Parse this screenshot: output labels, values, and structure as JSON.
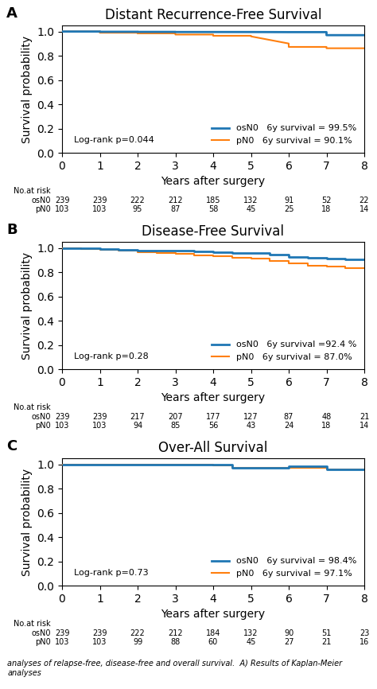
{
  "chart_data": [
    {
      "type": "line",
      "panel_label": "A",
      "title": "Distant Recurrence-Free Survival",
      "xlabel": "Years after surgery",
      "ylabel": "Survival probability",
      "xlim": [
        0,
        8
      ],
      "ylim": [
        0.0,
        1.05
      ],
      "xticks": [
        0,
        1,
        2,
        3,
        4,
        5,
        6,
        7,
        8
      ],
      "yticks": [
        {
          "value": 0.0,
          "label": "0.0"
        },
        {
          "value": 0.2,
          "label": "0.2"
        },
        {
          "value": 0.4,
          "label": "0.4"
        },
        {
          "value": 0.6,
          "label": "0.6"
        },
        {
          "value": 0.8,
          "label": "0.8"
        },
        {
          "value": 1.0,
          "label": "1.0"
        }
      ],
      "legend": "lower right",
      "annotations": [
        "Log-rank p=0.044"
      ],
      "series": [
        {
          "name": "osN0   6y survival = 99.5%",
          "x": [
            0,
            1,
            1,
            2,
            2,
            3,
            3,
            4,
            4,
            5,
            5,
            6,
            6,
            7,
            7,
            8
          ],
          "values": [
            1.0,
            1.0,
            0.998,
            0.998,
            0.997,
            0.997,
            0.996,
            0.996,
            0.996,
            0.996,
            0.996,
            0.995,
            0.995,
            0.995,
            0.97,
            0.97
          ]
        },
        {
          "name": "pN0   6y survival = 90.1%",
          "x": [
            0,
            1,
            1,
            2,
            2,
            3,
            3,
            4,
            4,
            5,
            5,
            6,
            6,
            7,
            7,
            8
          ],
          "values": [
            1.0,
            1.0,
            0.99,
            0.99,
            0.985,
            0.985,
            0.975,
            0.975,
            0.965,
            0.965,
            0.96,
            0.901,
            0.873,
            0.873,
            0.862,
            0.862
          ]
        }
      ],
      "at_risk": {
        "title": "No.at risk",
        "x": [
          0,
          1,
          2,
          3,
          4,
          5,
          6,
          7,
          8
        ],
        "rows": [
          {
            "name": "osN0",
            "values": [
              239,
              239,
              222,
              212,
              185,
              132,
              91,
              52,
              22
            ]
          },
          {
            "name": "pN0",
            "values": [
              103,
              103,
              95,
              87,
              58,
              45,
              25,
              18,
              14
            ]
          }
        ]
      }
    },
    {
      "type": "line",
      "panel_label": "B",
      "title": "Disease-Free Survival",
      "xlabel": "Years after surgery",
      "ylabel": "Survival probability",
      "xlim": [
        0,
        8
      ],
      "ylim": [
        0.0,
        1.05
      ],
      "xticks": [
        0,
        1,
        2,
        3,
        4,
        5,
        6,
        7,
        8
      ],
      "yticks": [
        {
          "value": 0.0,
          "label": "0.0"
        },
        {
          "value": 0.2,
          "label": "0.2"
        },
        {
          "value": 0.4,
          "label": "0.4"
        },
        {
          "value": 0.6,
          "label": "0.6"
        },
        {
          "value": 0.8,
          "label": "0.8"
        },
        {
          "value": 1.0,
          "label": "1.0"
        }
      ],
      "legend": "lower right",
      "annotations": [
        "Log-rank p=0.28"
      ],
      "series": [
        {
          "name": "osN0   6y survival =92.4 %",
          "x": [
            0,
            0.5,
            0.5,
            1,
            1,
            1.5,
            1.5,
            2,
            2,
            2.5,
            2.5,
            3,
            3,
            3.5,
            3.5,
            4,
            4,
            4.5,
            4.5,
            5,
            5,
            5.5,
            5.5,
            6,
            6,
            6.5,
            6.5,
            7,
            7,
            7.5,
            7.5,
            8
          ],
          "values": [
            1.0,
            1.0,
            0.995,
            0.995,
            0.99,
            0.99,
            0.985,
            0.985,
            0.98,
            0.98,
            0.978,
            0.978,
            0.975,
            0.975,
            0.97,
            0.97,
            0.965,
            0.965,
            0.96,
            0.96,
            0.955,
            0.955,
            0.945,
            0.945,
            0.924,
            0.924,
            0.92,
            0.92,
            0.912,
            0.912,
            0.905,
            0.905
          ]
        },
        {
          "name": "pN0   6y survival = 87.0%",
          "x": [
            0,
            0.5,
            0.5,
            1,
            1,
            1.5,
            1.5,
            2,
            2,
            2.5,
            2.5,
            3,
            3,
            3.5,
            3.5,
            4,
            4,
            4.5,
            4.5,
            5,
            5,
            5.5,
            5.5,
            6,
            6,
            6.5,
            6.5,
            7,
            7,
            7.5,
            7.5,
            8
          ],
          "values": [
            1.0,
            1.0,
            0.992,
            0.992,
            0.985,
            0.985,
            0.975,
            0.975,
            0.965,
            0.965,
            0.958,
            0.958,
            0.952,
            0.952,
            0.94,
            0.94,
            0.93,
            0.93,
            0.92,
            0.92,
            0.91,
            0.91,
            0.895,
            0.895,
            0.87,
            0.87,
            0.852,
            0.852,
            0.845,
            0.845,
            0.835,
            0.835
          ]
        }
      ],
      "at_risk": {
        "title": "No.at risk",
        "x": [
          0,
          1,
          2,
          3,
          4,
          5,
          6,
          7,
          8
        ],
        "rows": [
          {
            "name": "osN0",
            "values": [
              239,
              239,
              217,
              207,
              177,
              127,
              87,
              48,
              21
            ]
          },
          {
            "name": "pN0",
            "values": [
              103,
              103,
              94,
              85,
              56,
              43,
              24,
              18,
              14
            ]
          }
        ]
      }
    },
    {
      "type": "line",
      "panel_label": "C",
      "title": "Over-All Survival",
      "xlabel": "Years after surgery",
      "ylabel": "Survival probability",
      "xlim": [
        0,
        8
      ],
      "ylim": [
        0.0,
        1.05
      ],
      "xticks": [
        0,
        1,
        2,
        3,
        4,
        5,
        6,
        7,
        8
      ],
      "yticks": [
        {
          "value": 0.0,
          "label": "0.0"
        },
        {
          "value": 0.2,
          "label": "0.2"
        },
        {
          "value": 0.4,
          "label": "0.4"
        },
        {
          "value": 0.6,
          "label": "0.6"
        },
        {
          "value": 0.8,
          "label": "0.8"
        },
        {
          "value": 1.0,
          "label": "1.0"
        }
      ],
      "legend": "lower right",
      "annotations": [
        "Log-rank p=0.73"
      ],
      "series": [
        {
          "name": "osN0   6y survival = 98.4%",
          "x": [
            0,
            1,
            1,
            2,
            2,
            3,
            3,
            4,
            4,
            4.5,
            4.5,
            5,
            5,
            6,
            6,
            7,
            7,
            8
          ],
          "values": [
            1.0,
            1.0,
            0.999,
            0.999,
            0.998,
            0.998,
            0.997,
            0.997,
            0.996,
            0.996,
            0.97,
            0.97,
            0.968,
            0.968,
            0.984,
            0.984,
            0.96,
            0.96
          ]
        },
        {
          "name": "pN0   6y survival = 97.1%",
          "x": [
            0,
            1,
            1,
            2,
            2,
            3,
            3,
            4,
            4,
            4.5,
            4.5,
            5,
            5,
            6,
            6,
            7,
            7,
            8
          ],
          "values": [
            1.0,
            1.0,
            0.998,
            0.998,
            0.997,
            0.997,
            0.995,
            0.995,
            0.99,
            0.99,
            0.97,
            0.97,
            0.968,
            0.968,
            0.971,
            0.971,
            0.96,
            0.96
          ]
        }
      ],
      "at_risk": {
        "title": "No.at risk",
        "x": [
          0,
          1,
          2,
          3,
          4,
          5,
          6,
          7,
          8
        ],
        "rows": [
          {
            "name": "osN0",
            "values": [
              239,
              239,
              222,
              212,
              184,
              132,
              90,
              51,
              23
            ]
          },
          {
            "name": "pN0",
            "values": [
              103,
              103,
              99,
              88,
              60,
              45,
              27,
              21,
              16
            ]
          }
        ]
      }
    }
  ],
  "caption": "analyses of relapse-free, disease-free and overall survival.  A) Results of Kaplan-Meier analyses"
}
